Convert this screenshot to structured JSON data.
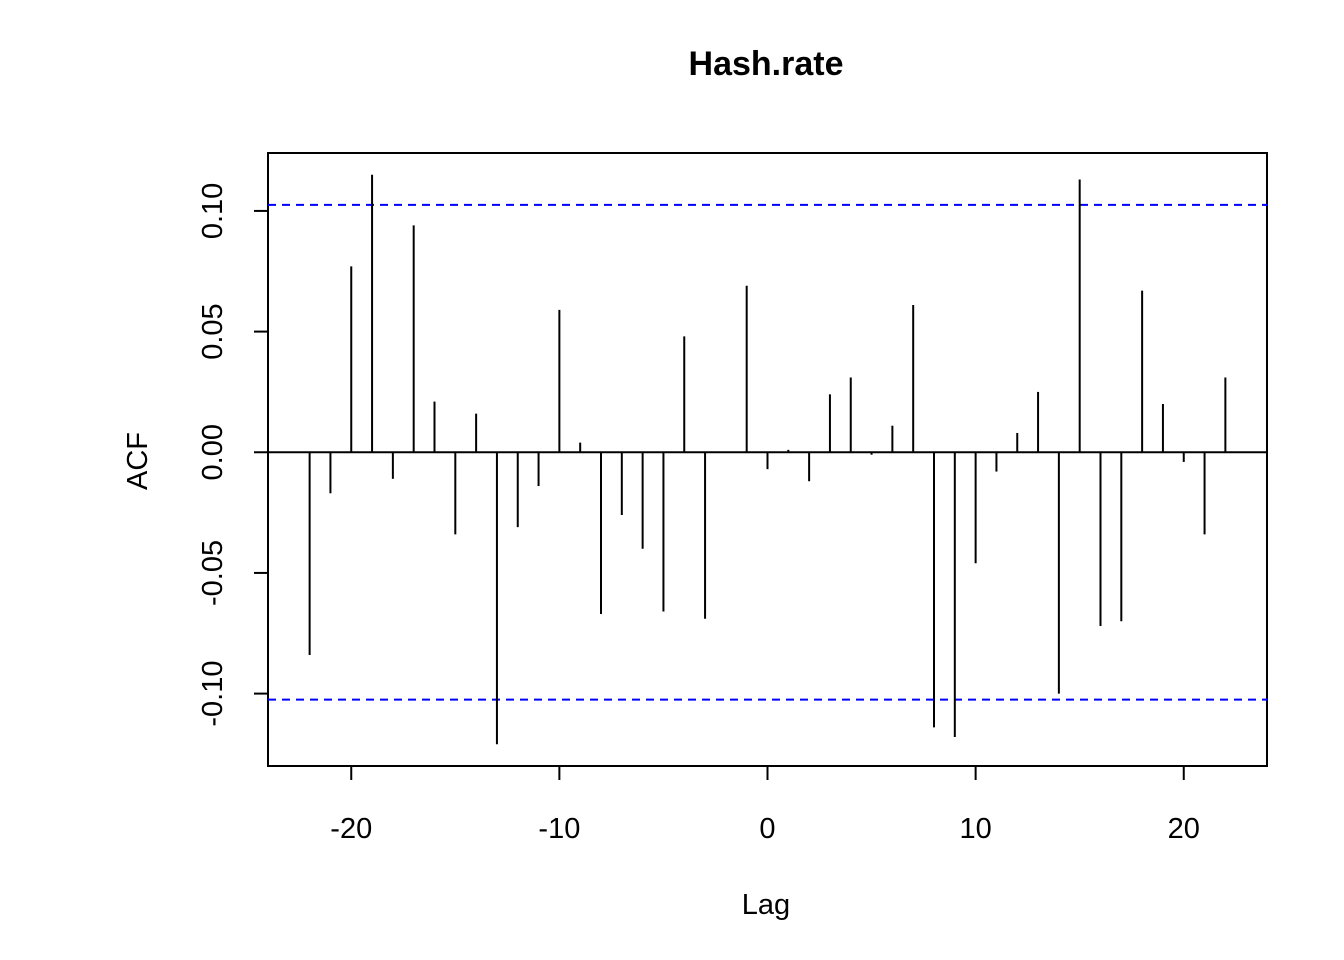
{
  "chart_data": {
    "type": "bar",
    "title": "Hash.rate",
    "xlabel": "Lag",
    "ylabel": "ACF",
    "xlim": [
      -24,
      24
    ],
    "ylim": [
      -0.13,
      0.124
    ],
    "x_ticks": [
      -20,
      -10,
      0,
      10,
      20
    ],
    "x_tick_labels": [
      "-20",
      "-10",
      "0",
      "10",
      "20"
    ],
    "y_ticks": [
      -0.1,
      -0.05,
      0.0,
      0.05,
      0.1
    ],
    "y_tick_labels": [
      "-0.10",
      "-0.05",
      "0.00",
      "0.05",
      "0.10"
    ],
    "confidence_bounds": [
      0.1025,
      -0.1025
    ],
    "zero_line": 0,
    "grid": false,
    "colors": {
      "bars": "#000000",
      "bounds": "#0000ff",
      "frame": "#000000"
    },
    "lags": [
      -22,
      -21,
      -20,
      -19,
      -18,
      -17,
      -16,
      -15,
      -14,
      -13,
      -12,
      -11,
      -10,
      -9,
      -8,
      -7,
      -6,
      -5,
      -4,
      -3,
      -2,
      -1,
      0,
      1,
      2,
      3,
      4,
      5,
      6,
      7,
      8,
      9,
      10,
      11,
      12,
      13,
      14,
      15,
      16,
      17,
      18,
      19,
      20,
      21,
      22
    ],
    "values": [
      -0.084,
      -0.017,
      0.077,
      0.115,
      -0.011,
      0.094,
      0.021,
      -0.034,
      0.016,
      -0.121,
      -0.031,
      -0.014,
      0.059,
      0.004,
      -0.067,
      -0.026,
      -0.04,
      -0.066,
      0.048,
      -0.069,
      0.0,
      0.069,
      -0.007,
      0.001,
      -0.012,
      0.024,
      0.031,
      -0.001,
      0.011,
      0.061,
      -0.114,
      -0.118,
      -0.046,
      -0.008,
      0.008,
      0.025,
      -0.1,
      0.113,
      -0.072,
      -0.07,
      0.067,
      0.02,
      -0.004,
      -0.034,
      0.031
    ]
  }
}
